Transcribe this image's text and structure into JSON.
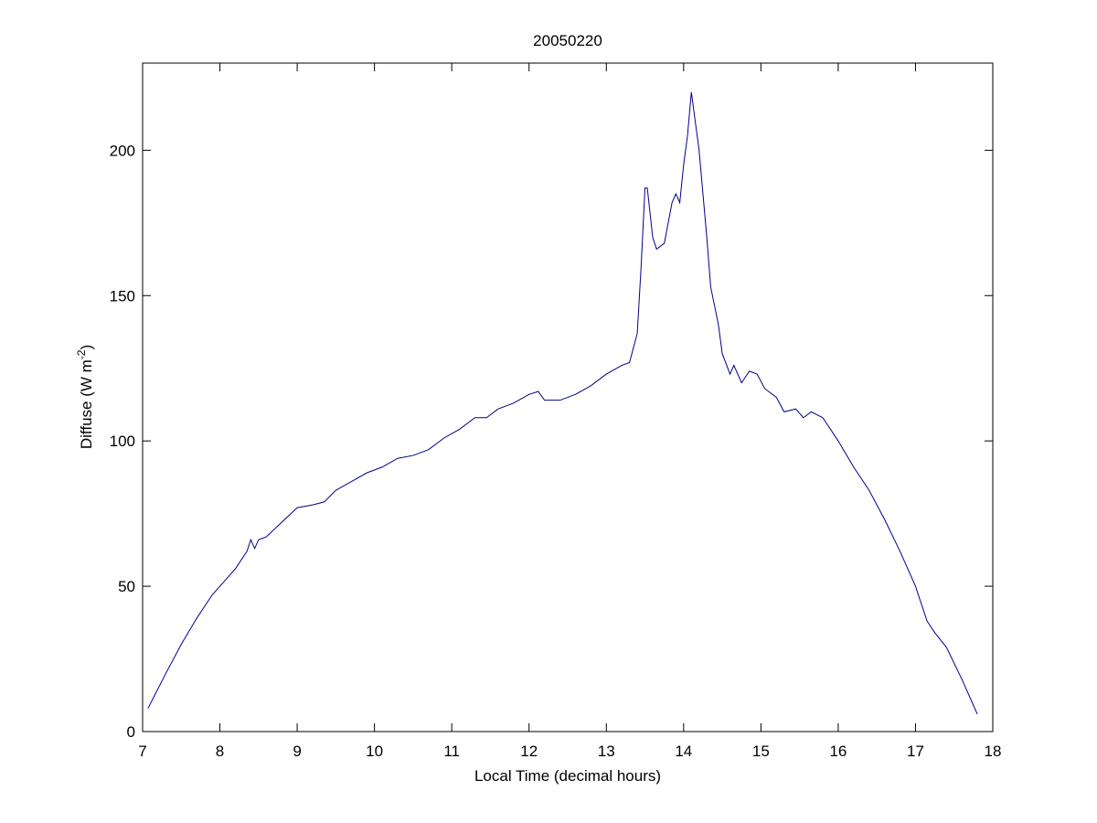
{
  "chart_data": {
    "type": "line",
    "title": "20050220",
    "xlabel": "Local Time (decimal hours)",
    "ylabel": {
      "text": "Diffuse (W m",
      "superscript": "-2",
      "suffix": ")"
    },
    "xlim": [
      7,
      18
    ],
    "xticks": [
      7,
      8,
      9,
      10,
      11,
      12,
      13,
      14,
      15,
      16,
      17,
      18
    ],
    "ylim": [
      0,
      230
    ],
    "yticks": [
      0,
      50,
      100,
      150,
      200
    ],
    "grid": false,
    "series": [
      {
        "color": "#00008b",
        "x": [
          7.07,
          7.3,
          7.5,
          7.7,
          7.9,
          8.1,
          8.2,
          8.35,
          8.4,
          8.45,
          8.5,
          8.6,
          8.8,
          9.0,
          9.2,
          9.35,
          9.5,
          9.7,
          9.9,
          10.1,
          10.3,
          10.5,
          10.7,
          10.9,
          11.1,
          11.3,
          11.45,
          11.6,
          11.8,
          12.0,
          12.12,
          12.2,
          12.4,
          12.6,
          12.8,
          13.0,
          13.2,
          13.3,
          13.4,
          13.45,
          13.5,
          13.53,
          13.6,
          13.65,
          13.75,
          13.85,
          13.9,
          13.95,
          14.0,
          14.05,
          14.1,
          14.15,
          14.2,
          14.3,
          14.35,
          14.45,
          14.5,
          14.6,
          14.65,
          14.75,
          14.85,
          14.95,
          15.05,
          15.2,
          15.3,
          15.45,
          15.55,
          15.65,
          15.8,
          16.0,
          16.2,
          16.4,
          16.6,
          16.8,
          17.0,
          17.15,
          17.25,
          17.4,
          17.6,
          17.8
        ],
        "values": [
          8,
          20,
          30,
          39,
          47,
          53,
          56,
          62,
          66,
          63,
          66,
          67,
          72,
          77,
          78,
          79,
          83,
          86,
          89,
          91,
          94,
          95,
          97,
          101,
          104,
          108,
          108,
          111,
          113,
          116,
          117,
          114,
          114,
          116,
          119,
          123,
          126,
          127,
          137,
          160,
          187,
          187,
          170,
          166,
          168,
          182,
          185,
          182,
          195,
          205,
          220,
          210,
          200,
          170,
          153,
          140,
          130,
          123,
          126,
          120,
          124,
          123,
          118,
          115,
          110,
          111,
          108,
          110,
          108,
          100,
          91,
          83,
          73,
          62,
          50,
          38,
          34,
          29,
          18,
          6
        ]
      }
    ]
  }
}
